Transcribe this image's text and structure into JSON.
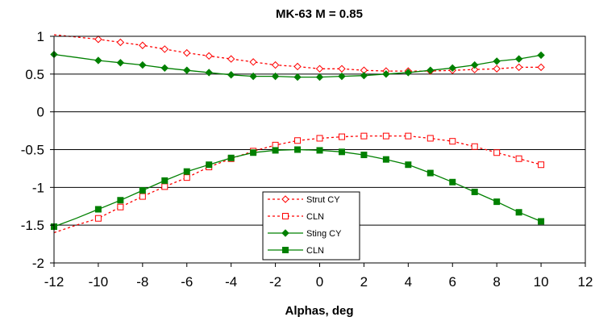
{
  "chart_data": {
    "type": "line",
    "title": "MK-63 M = 0.85",
    "xlabel": "Alphas, deg",
    "ylabel": "",
    "xlim": [
      -12,
      12
    ],
    "ylim": [
      -2,
      1
    ],
    "xticks": [
      "-12",
      "-10",
      "-8",
      "-6",
      "-4",
      "-2",
      "0",
      "2",
      "4",
      "6",
      "8",
      "10",
      "12"
    ],
    "yticks": [
      "1",
      "0.5",
      "0",
      "-0.5",
      "-1",
      "-1.5",
      "-2"
    ],
    "grid": "horizontal",
    "legend_position": "center-bottom",
    "series": [
      {
        "name": "Strut CY",
        "color": "#ff0000",
        "line_style": "dashed",
        "marker": "diamond-open",
        "line_x": [
          -12,
          -11,
          -10,
          -9,
          -8,
          -7,
          -6,
          -5,
          -4,
          -3,
          -2,
          -1,
          0,
          1,
          2,
          3,
          4,
          5,
          6,
          7,
          8,
          9,
          10
        ],
        "line_y": [
          1.02,
          0.99,
          0.96,
          0.92,
          0.88,
          0.83,
          0.78,
          0.74,
          0.7,
          0.66,
          0.62,
          0.6,
          0.57,
          0.57,
          0.55,
          0.54,
          0.54,
          0.54,
          0.55,
          0.56,
          0.57,
          0.59,
          0.59
        ],
        "marker_x": [
          -10,
          -9,
          -8,
          -7,
          -6,
          -5,
          -4,
          -3,
          -2,
          -1,
          0,
          1,
          2,
          3,
          4,
          5,
          6,
          7,
          8,
          9,
          10
        ],
        "marker_y": [
          0.96,
          0.92,
          0.88,
          0.83,
          0.78,
          0.74,
          0.7,
          0.66,
          0.62,
          0.6,
          0.57,
          0.57,
          0.55,
          0.54,
          0.54,
          0.54,
          0.55,
          0.56,
          0.57,
          0.59,
          0.59
        ]
      },
      {
        "name": "CLN",
        "color": "#ff0000",
        "line_style": "dashed",
        "marker": "square-open",
        "line_x": [
          -12,
          -11,
          -10,
          -9,
          -8,
          -7,
          -6,
          -5,
          -4,
          -3,
          -2,
          -1,
          0,
          1,
          2,
          3,
          4,
          5,
          6,
          7,
          8,
          9,
          10
        ],
        "line_y": [
          -1.6,
          -1.5,
          -1.41,
          -1.26,
          -1.12,
          -0.99,
          -0.87,
          -0.73,
          -0.62,
          -0.52,
          -0.44,
          -0.38,
          -0.35,
          -0.33,
          -0.32,
          -0.32,
          -0.32,
          -0.35,
          -0.39,
          -0.46,
          -0.54,
          -0.62,
          -0.7
        ],
        "marker_x": [
          -10,
          -9,
          -8,
          -7,
          -6,
          -5,
          -4,
          -3,
          -2,
          -1,
          0,
          1,
          2,
          3,
          4,
          5,
          6,
          7,
          8,
          9,
          10
        ],
        "marker_y": [
          -1.41,
          -1.26,
          -1.12,
          -0.99,
          -0.87,
          -0.73,
          -0.62,
          -0.52,
          -0.44,
          -0.38,
          -0.35,
          -0.33,
          -0.32,
          -0.32,
          -0.32,
          -0.35,
          -0.39,
          -0.46,
          -0.54,
          -0.62,
          -0.7
        ]
      },
      {
        "name": "Sting CY",
        "color": "#008000",
        "line_style": "solid",
        "marker": "diamond-filled",
        "line_x": [
          -12,
          -11,
          -10,
          -9,
          -8,
          -7,
          -6,
          -5,
          -4,
          -3,
          -2,
          -1,
          0,
          1,
          2,
          3,
          4,
          5,
          6,
          7,
          8,
          9,
          10
        ],
        "line_y": [
          0.76,
          0.72,
          0.68,
          0.65,
          0.62,
          0.58,
          0.55,
          0.52,
          0.49,
          0.47,
          0.47,
          0.46,
          0.46,
          0.47,
          0.48,
          0.5,
          0.52,
          0.55,
          0.58,
          0.62,
          0.67,
          0.7,
          0.75
        ],
        "marker_x": [
          -12,
          -10,
          -9,
          -8,
          -7,
          -6,
          -5,
          -4,
          -3,
          -2,
          -1,
          0,
          1,
          2,
          3,
          4,
          5,
          6,
          7,
          8,
          9,
          10
        ],
        "marker_y": [
          0.76,
          0.68,
          0.65,
          0.62,
          0.58,
          0.55,
          0.52,
          0.49,
          0.47,
          0.47,
          0.46,
          0.46,
          0.47,
          0.48,
          0.5,
          0.52,
          0.55,
          0.58,
          0.62,
          0.67,
          0.7,
          0.75
        ]
      },
      {
        "name": "CLN",
        "color": "#008000",
        "line_style": "solid",
        "marker": "square-filled",
        "line_x": [
          -12,
          -11,
          -10,
          -9,
          -8,
          -7,
          -6,
          -5,
          -4,
          -3,
          -2,
          -1,
          0,
          1,
          2,
          3,
          4,
          5,
          6,
          7,
          8,
          9,
          10
        ],
        "line_y": [
          -1.52,
          -1.41,
          -1.29,
          -1.17,
          -1.04,
          -0.91,
          -0.79,
          -0.7,
          -0.61,
          -0.54,
          -0.51,
          -0.5,
          -0.51,
          -0.53,
          -0.57,
          -0.63,
          -0.7,
          -0.81,
          -0.93,
          -1.06,
          -1.19,
          -1.33,
          -1.45
        ],
        "marker_x": [
          -12,
          -10,
          -9,
          -8,
          -7,
          -6,
          -5,
          -4,
          -3,
          -2,
          -1,
          0,
          1,
          2,
          3,
          4,
          5,
          6,
          7,
          8,
          9,
          10
        ],
        "marker_y": [
          -1.52,
          -1.29,
          -1.17,
          -1.04,
          -0.91,
          -0.79,
          -0.7,
          -0.61,
          -0.54,
          -0.51,
          -0.5,
          -0.51,
          -0.53,
          -0.57,
          -0.63,
          -0.7,
          -0.81,
          -0.93,
          -1.06,
          -1.19,
          -1.33,
          -1.45
        ]
      }
    ]
  }
}
